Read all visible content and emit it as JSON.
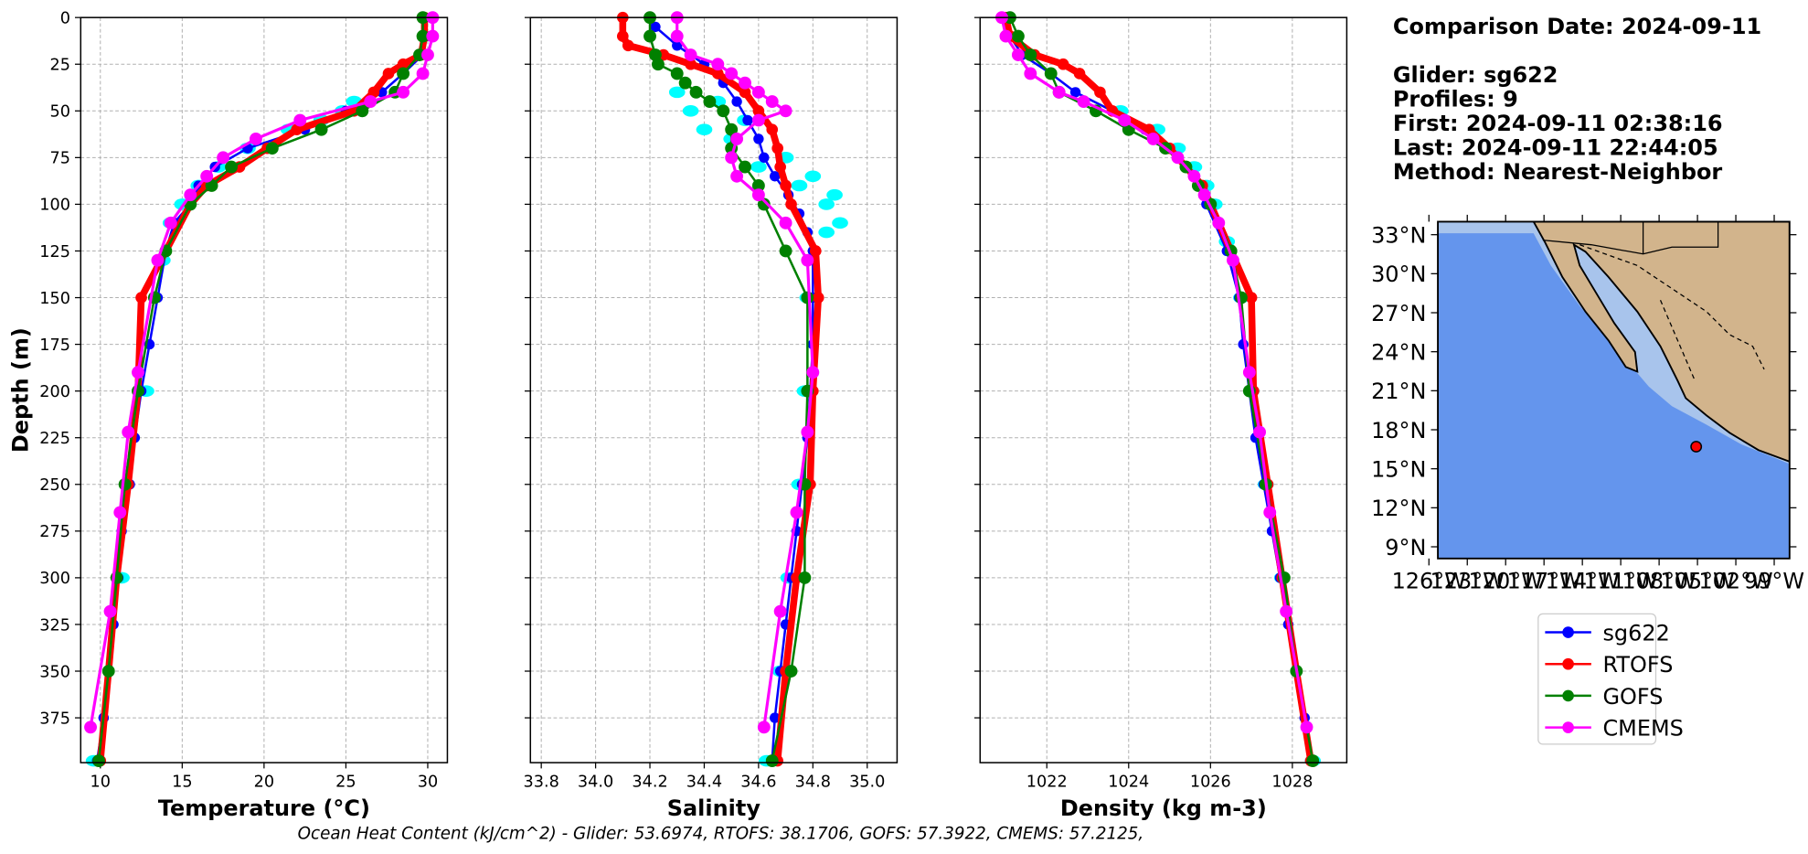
{
  "chart_data": [
    {
      "type": "line",
      "xlabel": "Temperature (°C)",
      "ylabel": "Depth (m)",
      "show_ytick_labels": true,
      "grid": true,
      "xlim": [
        8.8,
        31.2
      ],
      "xticks": [
        10,
        15,
        20,
        25,
        30
      ],
      "ylim": [
        399,
        0
      ],
      "yticks": [
        0,
        25,
        50,
        75,
        100,
        125,
        150,
        175,
        200,
        225,
        250,
        275,
        300,
        325,
        350,
        375
      ],
      "raw": {
        "color": "#00ffff",
        "depth": [
          45,
          50,
          55,
          60,
          70,
          80,
          90,
          100,
          110,
          130,
          200,
          300,
          398
        ],
        "values": [
          25.5,
          24.8,
          23.5,
          21.5,
          19,
          17.2,
          16,
          15,
          14.3,
          13.8,
          12.8,
          11.3,
          9.6
        ]
      },
      "series": [
        {
          "name": "sg622",
          "color": "#0000ff",
          "depth": [
            0,
            10,
            20,
            30,
            40,
            50,
            60,
            70,
            80,
            90,
            100,
            110,
            125,
            150,
            175,
            200,
            225,
            250,
            275,
            300,
            325,
            350,
            375,
            398
          ],
          "values": [
            29.8,
            29.9,
            29.7,
            28.5,
            27.2,
            25,
            22.5,
            19,
            17,
            16,
            15.5,
            14.5,
            14,
            13.5,
            13,
            12.5,
            12.1,
            11.8,
            11.3,
            11.1,
            10.8,
            10.5,
            10.2,
            9.8
          ]
        },
        {
          "name": "RTOFS",
          "color": "#ff0000",
          "depth": [
            0,
            10,
            20,
            25,
            30,
            40,
            50,
            60,
            70,
            80,
            90,
            100,
            125,
            150,
            200,
            250,
            300,
            350,
            398
          ],
          "values": [
            29.8,
            29.8,
            29.6,
            28.5,
            27.6,
            26.7,
            25.5,
            22,
            20.2,
            18.5,
            16.5,
            15.5,
            14,
            12.5,
            12.3,
            11.7,
            11,
            10.5,
            10
          ]
        },
        {
          "name": "GOFS",
          "color": "#008000",
          "depth": [
            0,
            10,
            20,
            30,
            40,
            50,
            60,
            70,
            80,
            90,
            100,
            125,
            150,
            200,
            250,
            300,
            350,
            398
          ],
          "values": [
            29.7,
            29.7,
            29.5,
            28.5,
            28,
            26,
            23.5,
            20.5,
            18,
            16.8,
            15.5,
            14,
            13.3,
            12.3,
            11.5,
            11,
            10.5,
            9.9
          ]
        },
        {
          "name": "CMEMS",
          "color": "#ff00ff",
          "depth": [
            0,
            10,
            20,
            30,
            40,
            45,
            55,
            65,
            75,
            85,
            95,
            110,
            130,
            190,
            222,
            265,
            318,
            380
          ],
          "values": [
            30.3,
            30.3,
            30,
            29.7,
            28.5,
            26.5,
            22.2,
            19.5,
            17.5,
            16.5,
            15.5,
            14.3,
            13.5,
            12.3,
            11.7,
            11.2,
            10.6,
            9.4
          ]
        }
      ]
    },
    {
      "type": "line",
      "xlabel": "Salinity",
      "show_ytick_labels": false,
      "grid": true,
      "xlim": [
        33.76,
        35.11
      ],
      "xticks": [
        33.8,
        {
          "value": 34,
          "label": "34.0"
        },
        34.2,
        34.4,
        34.6,
        34.8,
        {
          "value": 35,
          "label": "35.0"
        }
      ],
      "ylim": [
        399,
        0
      ],
      "yticks": [
        0,
        25,
        50,
        75,
        100,
        125,
        150,
        175,
        200,
        225,
        250,
        275,
        300,
        325,
        350,
        375
      ],
      "raw": {
        "color": "#00ffff",
        "depth": [
          40,
          45,
          50,
          55,
          60,
          65,
          75,
          80,
          85,
          90,
          95,
          100,
          110,
          115,
          150,
          200,
          250,
          300,
          350,
          398
        ],
        "values": [
          34.3,
          34.45,
          34.35,
          34.55,
          34.4,
          34.5,
          34.7,
          34.6,
          34.8,
          34.75,
          34.88,
          34.85,
          34.9,
          34.85,
          34.78,
          34.77,
          34.75,
          34.71,
          34.68,
          34.63
        ]
      },
      "series": [
        {
          "name": "sg622",
          "color": "#0000ff",
          "depth": [
            5,
            15,
            25,
            35,
            45,
            55,
            65,
            75,
            85,
            95,
            105,
            115,
            125,
            150,
            175,
            200,
            225,
            250,
            275,
            300,
            325,
            350,
            375,
            398
          ],
          "values": [
            34.22,
            34.3,
            34.4,
            34.47,
            34.52,
            34.56,
            34.6,
            34.62,
            34.66,
            34.71,
            34.75,
            34.78,
            34.8,
            34.8,
            34.8,
            34.79,
            34.78,
            34.76,
            34.74,
            34.72,
            34.7,
            34.68,
            34.66,
            34.65
          ]
        },
        {
          "name": "RTOFS",
          "color": "#ff0000",
          "depth": [
            0,
            10,
            15,
            20,
            25,
            30,
            40,
            50,
            60,
            70,
            80,
            90,
            100,
            125,
            150,
            200,
            250,
            300,
            350,
            398
          ],
          "values": [
            34.1,
            34.1,
            34.12,
            34.25,
            34.35,
            34.45,
            34.55,
            34.6,
            34.65,
            34.67,
            34.68,
            34.7,
            34.72,
            34.81,
            34.82,
            34.8,
            34.79,
            34.74,
            34.7,
            34.67
          ]
        },
        {
          "name": "GOFS",
          "color": "#008000",
          "depth": [
            0,
            10,
            20,
            25,
            30,
            35,
            40,
            45,
            50,
            60,
            70,
            80,
            90,
            100,
            125,
            150,
            200,
            250,
            300,
            350,
            398
          ],
          "values": [
            34.2,
            34.2,
            34.22,
            34.23,
            34.3,
            34.33,
            34.37,
            34.42,
            34.47,
            34.5,
            34.5,
            34.55,
            34.6,
            34.62,
            34.7,
            34.78,
            34.78,
            34.77,
            34.77,
            34.72,
            34.65
          ]
        },
        {
          "name": "CMEMS",
          "color": "#ff00ff",
          "depth": [
            0,
            10,
            20,
            25,
            30,
            35,
            40,
            45,
            50,
            55,
            65,
            75,
            85,
            95,
            110,
            130,
            190,
            222,
            265,
            318,
            380
          ],
          "values": [
            34.3,
            34.3,
            34.35,
            34.45,
            34.5,
            34.55,
            34.6,
            34.65,
            34.7,
            34.6,
            34.52,
            34.5,
            34.52,
            34.6,
            34.7,
            34.78,
            34.8,
            34.78,
            34.74,
            34.68,
            34.62
          ]
        }
      ]
    },
    {
      "type": "line",
      "xlabel": "Density (kg m-3)",
      "show_ytick_labels": false,
      "grid": true,
      "xlim": [
        1020.37,
        1029.33
      ],
      "xticks": [
        1022,
        1024,
        1026,
        1028
      ],
      "ylim": [
        399,
        0
      ],
      "yticks": [
        0,
        25,
        50,
        75,
        100,
        125,
        150,
        175,
        200,
        225,
        250,
        275,
        300,
        325,
        350,
        375
      ],
      "raw": {
        "color": "#00ffff",
        "depth": [
          50,
          60,
          70,
          80,
          90,
          100,
          120,
          150,
          200,
          250,
          300,
          398
        ],
        "values": [
          1023.8,
          1024.7,
          1025.2,
          1025.6,
          1025.9,
          1026.1,
          1026.4,
          1026.75,
          1027,
          1027.35,
          1027.75,
          1028.5
        ]
      },
      "series": [
        {
          "name": "sg622",
          "color": "#0000ff",
          "depth": [
            0,
            10,
            20,
            30,
            40,
            50,
            60,
            70,
            80,
            90,
            100,
            125,
            150,
            175,
            200,
            225,
            250,
            275,
            300,
            325,
            350,
            375,
            398
          ],
          "values": [
            1021,
            1021.1,
            1021.4,
            1022.1,
            1022.7,
            1023.6,
            1024.4,
            1025,
            1025.4,
            1025.7,
            1025.9,
            1026.4,
            1026.7,
            1026.8,
            1026.95,
            1027.1,
            1027.3,
            1027.5,
            1027.7,
            1027.9,
            1028.1,
            1028.3,
            1028.5
          ]
        },
        {
          "name": "RTOFS",
          "color": "#ff0000",
          "depth": [
            0,
            10,
            20,
            25,
            30,
            40,
            50,
            60,
            70,
            80,
            90,
            100,
            125,
            150,
            200,
            250,
            300,
            350,
            398
          ],
          "values": [
            1021,
            1021.1,
            1021.7,
            1022.4,
            1022.8,
            1023.3,
            1023.6,
            1024.5,
            1025,
            1025.4,
            1025.8,
            1026,
            1026.5,
            1027,
            1027.05,
            1027.4,
            1027.75,
            1028.1,
            1028.45
          ]
        },
        {
          "name": "GOFS",
          "color": "#008000",
          "depth": [
            0,
            10,
            20,
            30,
            40,
            50,
            60,
            70,
            80,
            90,
            100,
            125,
            150,
            200,
            250,
            300,
            350,
            398
          ],
          "values": [
            1021.1,
            1021.3,
            1021.6,
            1022.1,
            1022.3,
            1023.2,
            1024,
            1024.9,
            1025.4,
            1025.7,
            1026,
            1026.5,
            1026.75,
            1026.95,
            1027.35,
            1027.8,
            1028.1,
            1028.5
          ]
        },
        {
          "name": "CMEMS",
          "color": "#ff00ff",
          "depth": [
            0,
            10,
            20,
            30,
            40,
            45,
            55,
            65,
            75,
            85,
            95,
            110,
            130,
            190,
            222,
            265,
            318,
            380
          ],
          "values": [
            1020.9,
            1021,
            1021.3,
            1021.6,
            1022.3,
            1022.9,
            1023.9,
            1024.6,
            1025.2,
            1025.6,
            1025.85,
            1026.2,
            1026.55,
            1026.95,
            1027.2,
            1027.45,
            1027.85,
            1028.35
          ]
        }
      ]
    }
  ],
  "info": [
    "Comparison Date: 2024-09-11",
    "Glider: sg622",
    "Profiles: 9",
    "First: 2024-09-11 02:38:16",
    "Last: 2024-09-11 22:44:05",
    "Method: Nearest-Neighbor"
  ],
  "map": {
    "latlim": [
      8.1,
      34
    ],
    "lonlim": [
      -125.3,
      -97.8
    ],
    "latticks": [
      {
        "value": 33,
        "label": "33°N"
      },
      {
        "value": 30,
        "label": "30°N"
      },
      {
        "value": 27,
        "label": "27°N"
      },
      {
        "value": 24,
        "label": "24°N"
      },
      {
        "value": 21,
        "label": "21°N"
      },
      {
        "value": 18,
        "label": "18°N"
      },
      {
        "value": 15,
        "label": "15°N"
      },
      {
        "value": 12,
        "label": "12°N"
      },
      {
        "value": 9,
        "label": "9°N"
      }
    ],
    "lonticks": [
      {
        "value": -126,
        "label": "126°W"
      },
      {
        "value": -123,
        "label": "123°W"
      },
      {
        "value": -120,
        "label": "120°W"
      },
      {
        "value": -117,
        "label": "117°W"
      },
      {
        "value": -114,
        "label": "114°W"
      },
      {
        "value": -111,
        "label": "111°W"
      },
      {
        "value": -108,
        "label": "108°W"
      },
      {
        "value": -105,
        "label": "105°W"
      },
      {
        "value": -102,
        "label": "102°W"
      },
      {
        "value": -99,
        "label": "99°W"
      }
    ],
    "station": {
      "lat": 16.7,
      "lon": -105.1,
      "color": "#ff0000"
    }
  },
  "footer": "Ocean Heat Content (kJ/cm^2) - Glider: 53.6974,  RTOFS: 38.1706,  GOFS: 57.3922,  CMEMS: 57.2125,"
}
